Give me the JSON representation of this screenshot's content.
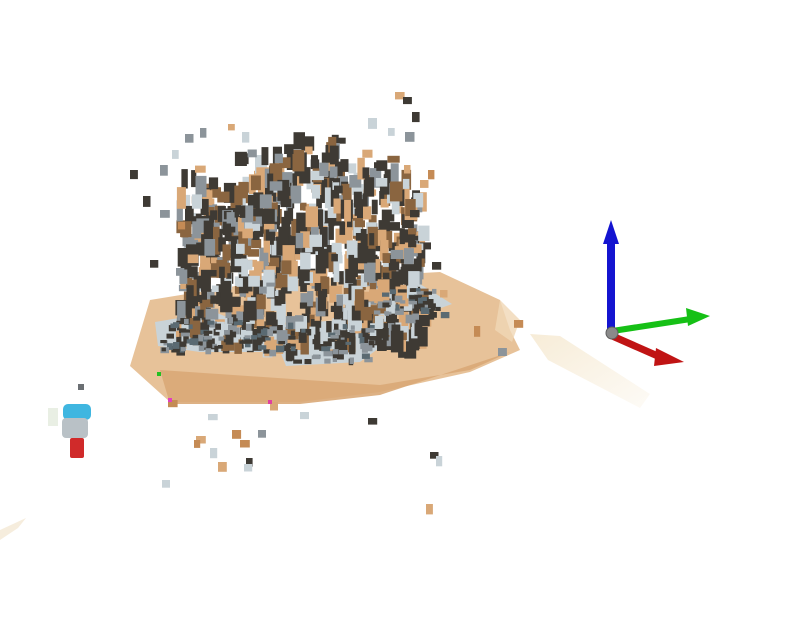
{
  "viewer": {
    "background": "#ffffff"
  },
  "point_cloud": {
    "palette": {
      "wood_light": "#e9c9a3",
      "wood_mid": "#d9a877",
      "wood_dark": "#c58b55",
      "dark_voxel": "#3e3a34",
      "grey_voxel": "#8c949a",
      "pale_voxel": "#c9d3d8",
      "brown_voxel": "#8a6540",
      "cream_streak": "#f2e6cf"
    }
  },
  "axes": {
    "x_color": "#c01414",
    "y_color": "#16c016",
    "z_color": "#1414d0",
    "origin_color": "#8a8a8a"
  },
  "side_object": {
    "cyan": "#3fb6e0",
    "red": "#d02a2a",
    "grey": "#b9c1c6"
  }
}
